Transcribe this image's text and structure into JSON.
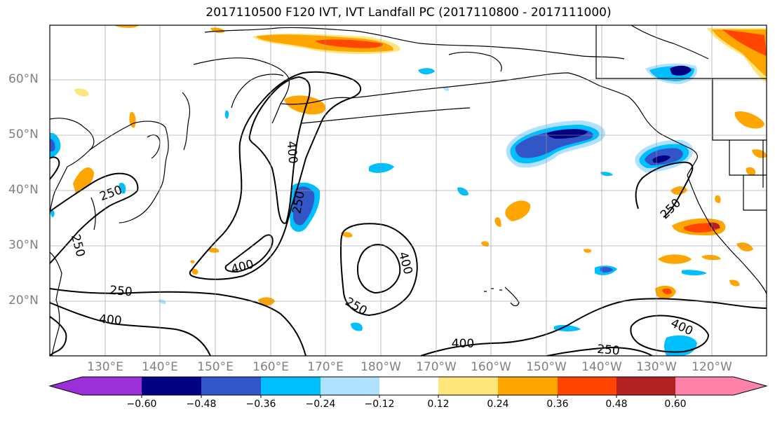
{
  "title": "2017110500 F120 IVT, IVT Landfall PC (2017110800 - 2017111000)",
  "lat_labels": [
    "60°N",
    "50°N",
    "40°N",
    "30°N",
    "20°N"
  ],
  "lon_labels": [
    "130°E",
    "140°E",
    "150°E",
    "160°E",
    "170°E",
    "180°W",
    "170°W",
    "160°W",
    "150°W",
    "140°W",
    "130°W",
    "120°W"
  ],
  "colorbar": {
    "ticks": [
      "−0.60",
      "−0.48",
      "−0.36",
      "−0.24",
      "−0.12",
      "0.12",
      "0.24",
      "0.36",
      "0.48",
      "0.60"
    ],
    "colors": [
      "#9b30d8",
      "#000080",
      "#3255c8",
      "#00bfff",
      "#b0e2ff",
      "#ffffff",
      "#ffe67a",
      "#ffa500",
      "#ff4500",
      "#b22222",
      "#ff82ab"
    ]
  },
  "contour_labels": [
    {
      "text": "250",
      "rot": -20
    },
    {
      "text": "250",
      "rot": 75
    },
    {
      "text": "400",
      "rot": 85
    },
    {
      "text": "250",
      "rot": -80
    },
    {
      "text": "400",
      "rot": -15
    },
    {
      "text": "250",
      "rot": 5
    },
    {
      "text": "400",
      "rot": 5
    },
    {
      "text": "400",
      "rot": 75
    },
    {
      "text": "250",
      "rot": 30
    },
    {
      "text": "400",
      "rot": 0
    },
    {
      "text": "250",
      "rot": 5
    },
    {
      "text": "400",
      "rot": 25
    },
    {
      "text": "250",
      "rot": -45
    }
  ]
}
